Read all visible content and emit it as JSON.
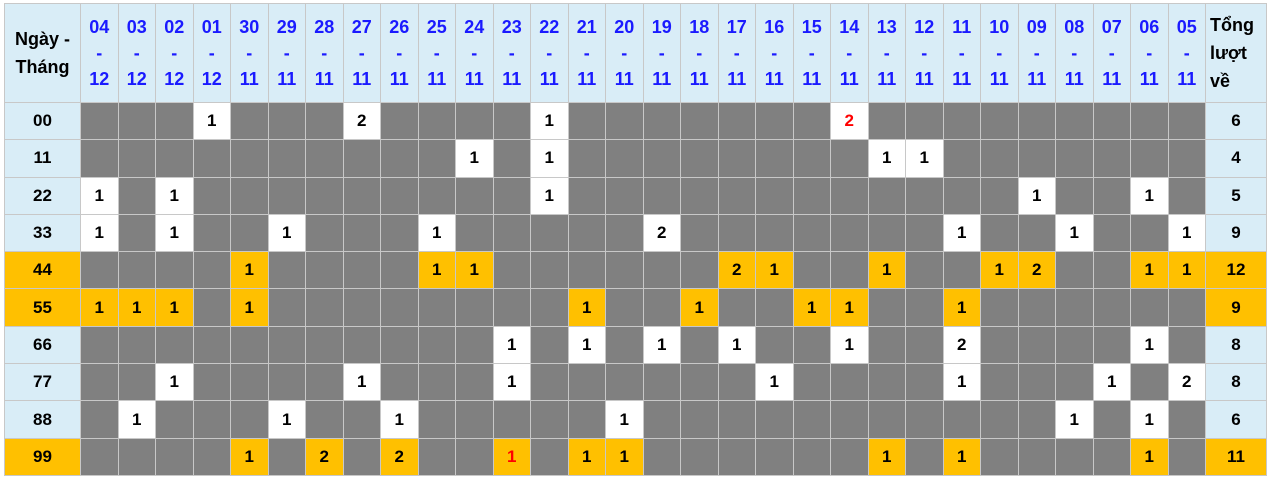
{
  "header": {
    "label_line1": "Ngày -",
    "label_line2": "Tháng",
    "total_line1": "Tổng",
    "total_line2": "lượt",
    "total_line3": "về",
    "separator": "-",
    "dates": [
      {
        "day": "04",
        "month": "12"
      },
      {
        "day": "03",
        "month": "12"
      },
      {
        "day": "02",
        "month": "12"
      },
      {
        "day": "01",
        "month": "12"
      },
      {
        "day": "30",
        "month": "11"
      },
      {
        "day": "29",
        "month": "11"
      },
      {
        "day": "28",
        "month": "11"
      },
      {
        "day": "27",
        "month": "11"
      },
      {
        "day": "26",
        "month": "11"
      },
      {
        "day": "25",
        "month": "11"
      },
      {
        "day": "24",
        "month": "11"
      },
      {
        "day": "23",
        "month": "11"
      },
      {
        "day": "22",
        "month": "11"
      },
      {
        "day": "21",
        "month": "11"
      },
      {
        "day": "20",
        "month": "11"
      },
      {
        "day": "19",
        "month": "11"
      },
      {
        "day": "18",
        "month": "11"
      },
      {
        "day": "17",
        "month": "11"
      },
      {
        "day": "16",
        "month": "11"
      },
      {
        "day": "15",
        "month": "11"
      },
      {
        "day": "14",
        "month": "11"
      },
      {
        "day": "13",
        "month": "11"
      },
      {
        "day": "12",
        "month": "11"
      },
      {
        "day": "11",
        "month": "11"
      },
      {
        "day": "10",
        "month": "11"
      },
      {
        "day": "09",
        "month": "11"
      },
      {
        "day": "08",
        "month": "11"
      },
      {
        "day": "07",
        "month": "11"
      },
      {
        "day": "06",
        "month": "11"
      },
      {
        "day": "05",
        "month": "11"
      }
    ]
  },
  "colors": {
    "header_bg": "#d9edf7",
    "empty": "#808080",
    "highlight": "#ffc000",
    "date_text": "#1a1aff",
    "red_text": "#ff0000"
  },
  "rows": [
    {
      "label": "00",
      "highlight": false,
      "total": "6",
      "cells": [
        "",
        "",
        "",
        "1",
        "",
        "",
        "",
        "2",
        "",
        "",
        "",
        "",
        "1",
        "",
        "",
        "",
        "",
        "",
        "",
        "",
        "2",
        "",
        "",
        "",
        "",
        "",
        "",
        "",
        "",
        ""
      ],
      "red": [
        20
      ]
    },
    {
      "label": "11",
      "highlight": false,
      "total": "4",
      "cells": [
        "",
        "",
        "",
        "",
        "",
        "",
        "",
        "",
        "",
        "",
        "1",
        "",
        "1",
        "",
        "",
        "",
        "",
        "",
        "",
        "",
        "",
        "1",
        "1",
        "",
        "",
        "",
        "",
        "",
        "",
        ""
      ],
      "red": []
    },
    {
      "label": "22",
      "highlight": false,
      "total": "5",
      "cells": [
        "1",
        "",
        "1",
        "",
        "",
        "",
        "",
        "",
        "",
        "",
        "",
        "",
        "1",
        "",
        "",
        "",
        "",
        "",
        "",
        "",
        "",
        "",
        "",
        "",
        "",
        "1",
        "",
        "",
        "1",
        ""
      ],
      "red": []
    },
    {
      "label": "33",
      "highlight": false,
      "total": "9",
      "cells": [
        "1",
        "",
        "1",
        "",
        "",
        "1",
        "",
        "",
        "",
        "1",
        "",
        "",
        "",
        "",
        "",
        "2",
        "",
        "",
        "",
        "",
        "",
        "",
        "",
        "1",
        "",
        "",
        "1",
        "",
        "",
        "1"
      ],
      "red": []
    },
    {
      "label": "44",
      "highlight": true,
      "total": "12",
      "cells": [
        "",
        "",
        "",
        "",
        "1",
        "",
        "",
        "",
        "",
        "1",
        "1",
        "",
        "",
        "",
        "",
        "",
        "",
        "2",
        "1",
        "",
        "",
        "1",
        "",
        "",
        "1",
        "2",
        "",
        "",
        "1",
        "1"
      ],
      "red": []
    },
    {
      "label": "55",
      "highlight": true,
      "total": "9",
      "cells": [
        "1",
        "1",
        "1",
        "",
        "1",
        "",
        "",
        "",
        "",
        "",
        "",
        "",
        "",
        "1",
        "",
        "",
        "1",
        "",
        "",
        "1",
        "1",
        "",
        "",
        "1",
        "",
        "",
        "",
        "",
        "",
        ""
      ],
      "red": []
    },
    {
      "label": "66",
      "highlight": false,
      "total": "8",
      "cells": [
        "",
        "",
        "",
        "",
        "",
        "",
        "",
        "",
        "",
        "",
        "",
        "1",
        "",
        "1",
        "",
        "1",
        "",
        "1",
        "",
        "",
        "1",
        "",
        "",
        "2",
        "",
        "",
        "",
        "",
        "1",
        ""
      ],
      "red": []
    },
    {
      "label": "77",
      "highlight": false,
      "total": "8",
      "cells": [
        "",
        "",
        "1",
        "",
        "",
        "",
        "",
        "1",
        "",
        "",
        "",
        "1",
        "",
        "",
        "",
        "",
        "",
        "",
        "1",
        "",
        "",
        "",
        "",
        "1",
        "",
        "",
        "",
        "1",
        "",
        "2"
      ],
      "red": []
    },
    {
      "label": "88",
      "highlight": false,
      "total": "6",
      "cells": [
        "",
        "1",
        "",
        "",
        "",
        "1",
        "",
        "",
        "1",
        "",
        "",
        "",
        "",
        "",
        "1",
        "",
        "",
        "",
        "",
        "",
        "",
        "",
        "",
        "",
        "",
        "",
        "1",
        "",
        "1",
        ""
      ],
      "red": []
    },
    {
      "label": "99",
      "highlight": true,
      "total": "11",
      "cells": [
        "",
        "",
        "",
        "",
        "1",
        "",
        "2",
        "",
        "2",
        "",
        "",
        "1",
        "",
        "1",
        "1",
        "",
        "",
        "",
        "",
        "",
        "",
        "1",
        "",
        "1",
        "",
        "",
        "",
        "",
        "1",
        ""
      ],
      "red": [
        11
      ]
    }
  ]
}
